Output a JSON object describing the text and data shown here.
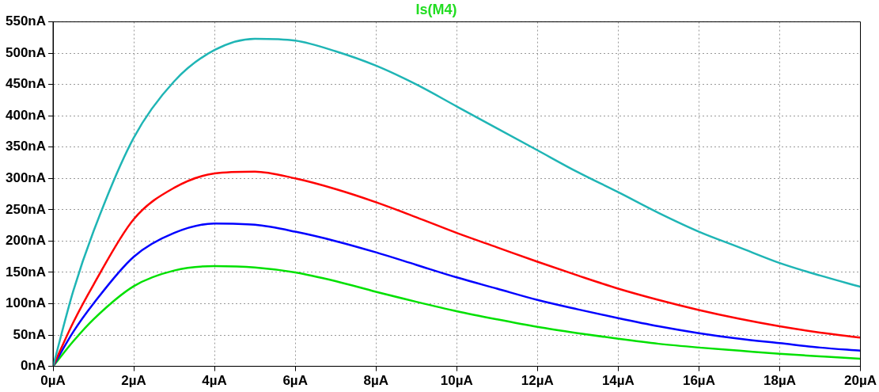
{
  "chart_data": {
    "type": "line",
    "title": "Is(M4)",
    "grid": true,
    "line_style": "solid",
    "marker": "none",
    "legend": false,
    "xlim": [
      0,
      20
    ],
    "ylim": [
      0,
      550
    ],
    "xticks": [
      {
        "value": 0,
        "label": "0µA"
      },
      {
        "value": 2,
        "label": "2µA"
      },
      {
        "value": 4,
        "label": "4µA"
      },
      {
        "value": 6,
        "label": "6µA"
      },
      {
        "value": 8,
        "label": "8µA"
      },
      {
        "value": 10,
        "label": "10µA"
      },
      {
        "value": 12,
        "label": "12µA"
      },
      {
        "value": 14,
        "label": "14µA"
      },
      {
        "value": 16,
        "label": "16µA"
      },
      {
        "value": 18,
        "label": "18µA"
      },
      {
        "value": 20,
        "label": "20µA"
      }
    ],
    "yticks": [
      {
        "value": 0,
        "label": "0nA"
      },
      {
        "value": 50,
        "label": "50nA"
      },
      {
        "value": 100,
        "label": "100nA"
      },
      {
        "value": 150,
        "label": "150nA"
      },
      {
        "value": 200,
        "label": "200nA"
      },
      {
        "value": 250,
        "label": "250nA"
      },
      {
        "value": 300,
        "label": "300nA"
      },
      {
        "value": 350,
        "label": "350nA"
      },
      {
        "value": 400,
        "label": "400nA"
      },
      {
        "value": 450,
        "label": "450nA"
      },
      {
        "value": 500,
        "label": "500nA"
      },
      {
        "value": 550,
        "label": "550nA"
      }
    ],
    "x": [
      0,
      0.5,
      1,
      2,
      3,
      4,
      5,
      6,
      7,
      8,
      9,
      10,
      11,
      12,
      13,
      14,
      15,
      16,
      17,
      18,
      19,
      20
    ],
    "series": [
      {
        "color": "#1fb5b5",
        "values": [
          0,
          120,
          215,
          365,
          455,
          505,
          523,
          520,
          503,
          480,
          450,
          415,
          380,
          345,
          310,
          278,
          245,
          215,
          190,
          165,
          145,
          127
        ]
      },
      {
        "color": "#ff0000",
        "values": [
          0,
          70,
          130,
          235,
          285,
          308,
          311,
          300,
          283,
          262,
          238,
          213,
          190,
          167,
          145,
          124,
          106,
          90,
          76,
          64,
          54,
          46
        ]
      },
      {
        "color": "#0000ff",
        "values": [
          0,
          55,
          100,
          175,
          213,
          228,
          226,
          215,
          200,
          182,
          162,
          142,
          124,
          106,
          91,
          77,
          64,
          53,
          44,
          37,
          30,
          25
        ]
      },
      {
        "color": "#00e000",
        "values": [
          0,
          40,
          75,
          128,
          153,
          160,
          158,
          150,
          136,
          119,
          103,
          88,
          75,
          63,
          53,
          44,
          36,
          30,
          25,
          20,
          16,
          12
        ]
      }
    ]
  }
}
